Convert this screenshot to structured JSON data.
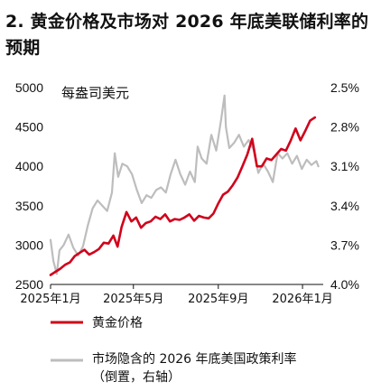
{
  "title": "2. 黄金价格及市场对 2026 年底美联储利率的预期",
  "colors": {
    "gold": "#d0021b",
    "rate": "#bdbdbd",
    "axis": "#111111",
    "background": "#ffffff"
  },
  "chart_data": {
    "type": "line",
    "unit_label": "每盎司美元",
    "x_ticks": [
      "2025年1月",
      "2025年5月",
      "2025年9月",
      "2026年1月"
    ],
    "x_range": [
      "2025-01-01",
      "2026-01-31"
    ],
    "left_axis": {
      "min": 2500,
      "max": 5000,
      "ticks": [
        "2500",
        "3000",
        "3500",
        "4000",
        "4500",
        "5000"
      ]
    },
    "right_axis": {
      "inverted": true,
      "min": 2.5,
      "max": 4.0,
      "ticks": [
        "2.5%",
        "2.8%",
        "3.1%",
        "3.4%",
        "3.7%",
        "4.0%"
      ]
    },
    "grid": false,
    "legend_position": "bottom",
    "series": [
      {
        "name": "黄金价格",
        "axis": "left",
        "color": "#d0021b",
        "points": [
          [
            "2025-01-01",
            2620
          ],
          [
            "2025-01-08",
            2660
          ],
          [
            "2025-01-15",
            2700
          ],
          [
            "2025-01-22",
            2750
          ],
          [
            "2025-01-29",
            2780
          ],
          [
            "2025-02-05",
            2860
          ],
          [
            "2025-02-12",
            2900
          ],
          [
            "2025-02-19",
            2940
          ],
          [
            "2025-02-26",
            2880
          ],
          [
            "2025-03-05",
            2910
          ],
          [
            "2025-03-12",
            2950
          ],
          [
            "2025-03-19",
            3030
          ],
          [
            "2025-03-26",
            3020
          ],
          [
            "2025-04-02",
            3120
          ],
          [
            "2025-04-08",
            2980
          ],
          [
            "2025-04-14",
            3230
          ],
          [
            "2025-04-21",
            3420
          ],
          [
            "2025-04-28",
            3300
          ],
          [
            "2025-05-05",
            3350
          ],
          [
            "2025-05-12",
            3220
          ],
          [
            "2025-05-19",
            3280
          ],
          [
            "2025-05-26",
            3300
          ],
          [
            "2025-06-02",
            3360
          ],
          [
            "2025-06-09",
            3330
          ],
          [
            "2025-06-16",
            3390
          ],
          [
            "2025-06-23",
            3300
          ],
          [
            "2025-06-30",
            3330
          ],
          [
            "2025-07-07",
            3320
          ],
          [
            "2025-07-14",
            3350
          ],
          [
            "2025-07-21",
            3390
          ],
          [
            "2025-07-28",
            3310
          ],
          [
            "2025-08-04",
            3370
          ],
          [
            "2025-08-11",
            3350
          ],
          [
            "2025-08-18",
            3340
          ],
          [
            "2025-08-25",
            3400
          ],
          [
            "2025-09-01",
            3530
          ],
          [
            "2025-09-08",
            3640
          ],
          [
            "2025-09-15",
            3680
          ],
          [
            "2025-09-22",
            3760
          ],
          [
            "2025-09-29",
            3860
          ],
          [
            "2025-10-06",
            4000
          ],
          [
            "2025-10-13",
            4150
          ],
          [
            "2025-10-20",
            4350
          ],
          [
            "2025-10-27",
            4000
          ],
          [
            "2025-11-03",
            4000
          ],
          [
            "2025-11-10",
            4100
          ],
          [
            "2025-11-17",
            4080
          ],
          [
            "2025-11-24",
            4150
          ],
          [
            "2025-12-01",
            4220
          ],
          [
            "2025-12-08",
            4200
          ],
          [
            "2025-12-15",
            4330
          ],
          [
            "2025-12-22",
            4480
          ],
          [
            "2025-12-29",
            4330
          ],
          [
            "2026-01-05",
            4450
          ],
          [
            "2026-01-12",
            4580
          ],
          [
            "2026-01-19",
            4620
          ]
        ]
      },
      {
        "name": "市场隐含的 2026 年底美国政策利率 （倒置，右轴）",
        "axis": "right",
        "color": "#bdbdbd",
        "points": [
          [
            "2025-01-01",
            3.66
          ],
          [
            "2025-01-05",
            3.82
          ],
          [
            "2025-01-10",
            3.92
          ],
          [
            "2025-01-14",
            3.74
          ],
          [
            "2025-01-20",
            3.7
          ],
          [
            "2025-01-27",
            3.62
          ],
          [
            "2025-02-03",
            3.72
          ],
          [
            "2025-02-10",
            3.78
          ],
          [
            "2025-02-17",
            3.71
          ],
          [
            "2025-02-24",
            3.55
          ],
          [
            "2025-03-03",
            3.42
          ],
          [
            "2025-03-10",
            3.36
          ],
          [
            "2025-03-17",
            3.4
          ],
          [
            "2025-03-24",
            3.44
          ],
          [
            "2025-03-31",
            3.3
          ],
          [
            "2025-04-04",
            3.0
          ],
          [
            "2025-04-09",
            3.18
          ],
          [
            "2025-04-15",
            3.08
          ],
          [
            "2025-04-22",
            3.1
          ],
          [
            "2025-04-29",
            3.16
          ],
          [
            "2025-05-06",
            3.28
          ],
          [
            "2025-05-13",
            3.38
          ],
          [
            "2025-05-20",
            3.32
          ],
          [
            "2025-05-27",
            3.34
          ],
          [
            "2025-06-03",
            3.28
          ],
          [
            "2025-06-10",
            3.26
          ],
          [
            "2025-06-17",
            3.3
          ],
          [
            "2025-06-24",
            3.16
          ],
          [
            "2025-07-01",
            3.05
          ],
          [
            "2025-07-08",
            3.16
          ],
          [
            "2025-07-15",
            3.24
          ],
          [
            "2025-07-22",
            3.14
          ],
          [
            "2025-07-29",
            3.22
          ],
          [
            "2025-08-02",
            2.95
          ],
          [
            "2025-08-08",
            3.04
          ],
          [
            "2025-08-15",
            3.08
          ],
          [
            "2025-08-22",
            2.86
          ],
          [
            "2025-08-29",
            2.98
          ],
          [
            "2025-09-05",
            2.75
          ],
          [
            "2025-09-10",
            2.56
          ],
          [
            "2025-09-12",
            2.8
          ],
          [
            "2025-09-17",
            2.96
          ],
          [
            "2025-09-24",
            2.92
          ],
          [
            "2025-10-01",
            2.86
          ],
          [
            "2025-10-08",
            2.95
          ],
          [
            "2025-10-15",
            2.9
          ],
          [
            "2025-10-22",
            2.97
          ],
          [
            "2025-10-29",
            3.15
          ],
          [
            "2025-11-05",
            3.08
          ],
          [
            "2025-11-12",
            3.14
          ],
          [
            "2025-11-19",
            3.22
          ],
          [
            "2025-11-26",
            3.0
          ],
          [
            "2025-12-03",
            3.04
          ],
          [
            "2025-12-10",
            3.0
          ],
          [
            "2025-12-17",
            3.08
          ],
          [
            "2025-12-24",
            3.02
          ],
          [
            "2025-12-31",
            3.12
          ],
          [
            "2026-01-07",
            3.05
          ],
          [
            "2026-01-14",
            3.09
          ],
          [
            "2026-01-21",
            3.06
          ],
          [
            "2026-01-24",
            3.1
          ]
        ]
      }
    ]
  }
}
